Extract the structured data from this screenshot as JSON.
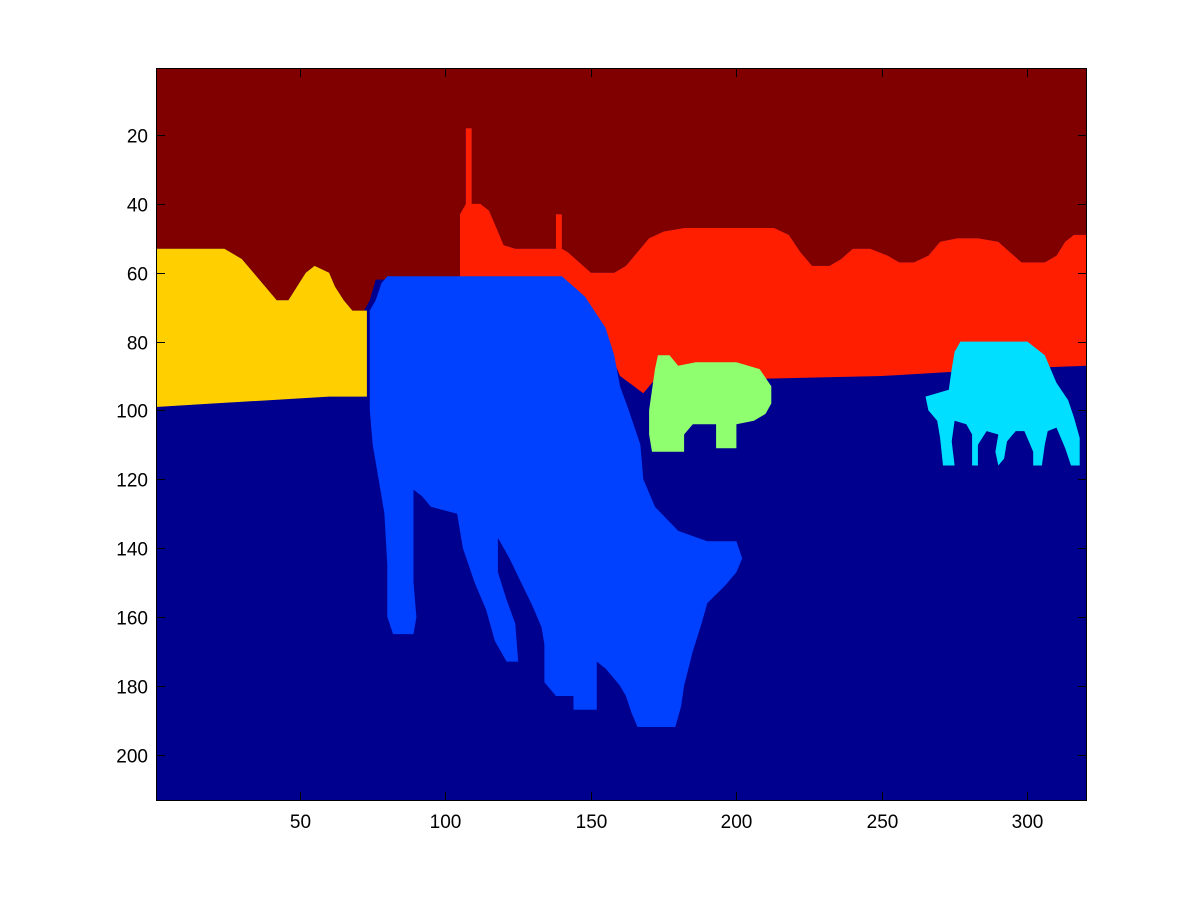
{
  "chart_data": {
    "type": "heatmap",
    "title": "",
    "xlabel": "",
    "ylabel": "",
    "image_size": {
      "width": 320,
      "height": 213
    },
    "xlim": [
      0.5,
      320.5
    ],
    "ylim": [
      213.5,
      0.5
    ],
    "y_direction": "reversed",
    "x_ticks": [
      50,
      100,
      150,
      200,
      250,
      300
    ],
    "x_tick_labels": [
      "50",
      "100",
      "150",
      "200",
      "250",
      "300"
    ],
    "y_ticks": [
      20,
      40,
      60,
      80,
      100,
      120,
      140,
      160,
      180,
      200
    ],
    "y_tick_labels": [
      "20",
      "40",
      "60",
      "80",
      "100",
      "120",
      "140",
      "160",
      "180",
      "200"
    ],
    "grid": false,
    "colors": {
      "background_ground": "#00008f",
      "sky": "#800000",
      "left_field": "#ffcf00",
      "far_field": "#ff1f00",
      "cow_foreground": "#0040ff",
      "cow_middle": "#8fff70",
      "cow_right": "#00dfff"
    },
    "regions": [
      {
        "name": "sky",
        "color": "#800000",
        "points": [
          [
            0.5,
            0.5
          ],
          [
            320.5,
            0.5
          ],
          [
            320.5,
            49
          ],
          [
            316,
            49
          ],
          [
            313,
            51
          ],
          [
            310,
            55
          ],
          [
            306,
            57
          ],
          [
            298,
            57
          ],
          [
            294,
            54
          ],
          [
            290,
            51
          ],
          [
            283,
            50
          ],
          [
            276,
            50
          ],
          [
            270,
            51
          ],
          [
            266,
            55
          ],
          [
            261,
            57
          ],
          [
            256,
            57
          ],
          [
            252,
            55
          ],
          [
            246,
            53
          ],
          [
            240,
            53
          ],
          [
            236,
            56
          ],
          [
            232,
            58
          ],
          [
            226,
            58
          ],
          [
            222,
            54
          ],
          [
            218,
            49
          ],
          [
            213,
            47
          ],
          [
            195,
            47
          ],
          [
            182,
            47
          ],
          [
            175,
            48
          ],
          [
            170,
            50
          ],
          [
            166,
            54
          ],
          [
            162,
            58
          ],
          [
            158,
            60
          ],
          [
            150,
            60
          ],
          [
            146,
            57
          ],
          [
            142,
            54
          ],
          [
            140,
            53
          ],
          [
            140,
            43
          ],
          [
            138,
            43
          ],
          [
            138,
            53
          ],
          [
            124,
            53
          ],
          [
            120,
            52
          ],
          [
            118,
            48
          ],
          [
            115,
            42
          ],
          [
            112,
            40
          ],
          [
            110,
            41
          ],
          [
            109,
            40
          ],
          [
            109,
            18
          ],
          [
            107,
            18
          ],
          [
            107,
            40
          ],
          [
            105,
            43
          ],
          [
            105,
            63
          ],
          [
            85,
            62
          ],
          [
            76,
            62
          ],
          [
            74,
            68
          ],
          [
            72,
            71
          ],
          [
            68,
            71
          ],
          [
            65,
            68
          ],
          [
            62,
            64
          ],
          [
            60,
            60
          ],
          [
            55,
            58
          ],
          [
            52,
            60
          ],
          [
            49,
            64
          ],
          [
            46,
            68
          ],
          [
            42,
            68
          ],
          [
            38,
            64
          ],
          [
            34,
            60
          ],
          [
            30,
            56
          ],
          [
            24,
            53
          ],
          [
            16,
            53
          ],
          [
            8,
            53
          ],
          [
            0.5,
            53
          ]
        ]
      },
      {
        "name": "left-field",
        "color": "#ffcf00",
        "points": [
          [
            0.5,
            53
          ],
          [
            24,
            53
          ],
          [
            30,
            56
          ],
          [
            34,
            60
          ],
          [
            38,
            64
          ],
          [
            42,
            68
          ],
          [
            46,
            68
          ],
          [
            49,
            64
          ],
          [
            52,
            60
          ],
          [
            55,
            58
          ],
          [
            60,
            60
          ],
          [
            62,
            64
          ],
          [
            65,
            68
          ],
          [
            68,
            71
          ],
          [
            73,
            71
          ],
          [
            73,
            96
          ],
          [
            60,
            96
          ],
          [
            40,
            97
          ],
          [
            20,
            98
          ],
          [
            0.5,
            99
          ]
        ]
      },
      {
        "name": "far-field",
        "color": "#ff1f00",
        "points": [
          [
            105,
            43
          ],
          [
            107,
            40
          ],
          [
            107,
            18
          ],
          [
            109,
            18
          ],
          [
            109,
            40
          ],
          [
            112,
            40
          ],
          [
            115,
            42
          ],
          [
            118,
            48
          ],
          [
            120,
            52
          ],
          [
            124,
            53
          ],
          [
            138,
            53
          ],
          [
            138,
            43
          ],
          [
            140,
            43
          ],
          [
            140,
            53
          ],
          [
            142,
            54
          ],
          [
            146,
            57
          ],
          [
            150,
            60
          ],
          [
            158,
            60
          ],
          [
            162,
            58
          ],
          [
            166,
            54
          ],
          [
            170,
            50
          ],
          [
            175,
            48
          ],
          [
            182,
            47
          ],
          [
            213,
            47
          ],
          [
            218,
            49
          ],
          [
            222,
            54
          ],
          [
            226,
            58
          ],
          [
            232,
            58
          ],
          [
            236,
            56
          ],
          [
            240,
            53
          ],
          [
            246,
            53
          ],
          [
            252,
            55
          ],
          [
            256,
            57
          ],
          [
            261,
            57
          ],
          [
            266,
            55
          ],
          [
            270,
            51
          ],
          [
            276,
            50
          ],
          [
            283,
            50
          ],
          [
            290,
            51
          ],
          [
            294,
            54
          ],
          [
            298,
            57
          ],
          [
            306,
            57
          ],
          [
            310,
            55
          ],
          [
            313,
            51
          ],
          [
            316,
            49
          ],
          [
            320.5,
            49
          ],
          [
            320.5,
            87
          ],
          [
            290,
            88
          ],
          [
            250,
            90
          ],
          [
            200,
            91
          ],
          [
            172,
            91
          ],
          [
            168,
            95
          ],
          [
            160,
            90
          ],
          [
            155,
            80
          ],
          [
            148,
            70
          ],
          [
            140,
            64
          ],
          [
            120,
            62
          ],
          [
            105,
            63
          ]
        ]
      },
      {
        "name": "cow-foreground",
        "color": "#0040ff",
        "points": [
          [
            80,
            61
          ],
          [
            140,
            61
          ],
          [
            148,
            67
          ],
          [
            155,
            76
          ],
          [
            158,
            84
          ],
          [
            160,
            93
          ],
          [
            163,
            100
          ],
          [
            167,
            110
          ],
          [
            168,
            120
          ],
          [
            172,
            128
          ],
          [
            180,
            135
          ],
          [
            190,
            138
          ],
          [
            200,
            138
          ],
          [
            202,
            143
          ],
          [
            200,
            147
          ],
          [
            196,
            151
          ],
          [
            190,
            156
          ],
          [
            188,
            162
          ],
          [
            185,
            170
          ],
          [
            182,
            180
          ],
          [
            181,
            186
          ],
          [
            179,
            192
          ],
          [
            166,
            192
          ],
          [
            164,
            188
          ],
          [
            162,
            183
          ],
          [
            160,
            180
          ],
          [
            158,
            178
          ],
          [
            155,
            175
          ],
          [
            152,
            173
          ],
          [
            152,
            187
          ],
          [
            144,
            187
          ],
          [
            144,
            183
          ],
          [
            138,
            183
          ],
          [
            134,
            179
          ],
          [
            134,
            168
          ],
          [
            133,
            163
          ],
          [
            130,
            157
          ],
          [
            126,
            150
          ],
          [
            122,
            143
          ],
          [
            118,
            137
          ],
          [
            118,
            147
          ],
          [
            121,
            155
          ],
          [
            124,
            162
          ],
          [
            125,
            173
          ],
          [
            121,
            173
          ],
          [
            117,
            167
          ],
          [
            114,
            158
          ],
          [
            110,
            150
          ],
          [
            106,
            140
          ],
          [
            104,
            130
          ],
          [
            95,
            128
          ],
          [
            92,
            125
          ],
          [
            89,
            123
          ],
          [
            89,
            140
          ],
          [
            89,
            150
          ],
          [
            90,
            160
          ],
          [
            89,
            165
          ],
          [
            82,
            165
          ],
          [
            80,
            160
          ],
          [
            80,
            145
          ],
          [
            79,
            130
          ],
          [
            77,
            120
          ],
          [
            75,
            110
          ],
          [
            74,
            100
          ],
          [
            74,
            71
          ],
          [
            76,
            68
          ],
          [
            78,
            63
          ]
        ]
      },
      {
        "name": "cow-middle",
        "color": "#8fff70",
        "points": [
          [
            173,
            84
          ],
          [
            177,
            84
          ],
          [
            180,
            87
          ],
          [
            186,
            86
          ],
          [
            200,
            86
          ],
          [
            208,
            88
          ],
          [
            212,
            93
          ],
          [
            212,
            98
          ],
          [
            210,
            101
          ],
          [
            206,
            103
          ],
          [
            200,
            104
          ],
          [
            200,
            111
          ],
          [
            193,
            111
          ],
          [
            193,
            104
          ],
          [
            185,
            104
          ],
          [
            182,
            107
          ],
          [
            182,
            112
          ],
          [
            171,
            112
          ],
          [
            170,
            107
          ],
          [
            170,
            100
          ],
          [
            171,
            94
          ],
          [
            172,
            88
          ]
        ]
      },
      {
        "name": "cow-right",
        "color": "#00dfff",
        "points": [
          [
            277,
            80
          ],
          [
            300,
            80
          ],
          [
            306,
            84
          ],
          [
            310,
            92
          ],
          [
            314,
            97
          ],
          [
            316,
            102
          ],
          [
            318,
            108
          ],
          [
            318,
            116
          ],
          [
            315,
            116
          ],
          [
            313,
            111
          ],
          [
            310,
            105
          ],
          [
            307,
            106
          ],
          [
            306,
            110
          ],
          [
            305,
            116
          ],
          [
            302,
            116
          ],
          [
            302,
            112
          ],
          [
            299,
            106
          ],
          [
            296,
            106
          ],
          [
            293,
            109
          ],
          [
            292,
            114
          ],
          [
            290,
            116
          ],
          [
            289,
            112
          ],
          [
            290,
            107
          ],
          [
            286,
            106
          ],
          [
            283,
            110
          ],
          [
            283,
            116
          ],
          [
            281,
            116
          ],
          [
            281,
            107
          ],
          [
            279,
            104
          ],
          [
            275,
            103
          ],
          [
            274,
            109
          ],
          [
            275,
            116
          ],
          [
            280,
            116
          ],
          [
            271,
            116
          ],
          [
            270,
            108
          ],
          [
            269,
            103
          ],
          [
            266,
            100
          ],
          [
            265,
            96
          ],
          [
            273,
            94
          ],
          [
            274,
            88
          ],
          [
            275,
            83
          ]
        ]
      }
    ]
  }
}
